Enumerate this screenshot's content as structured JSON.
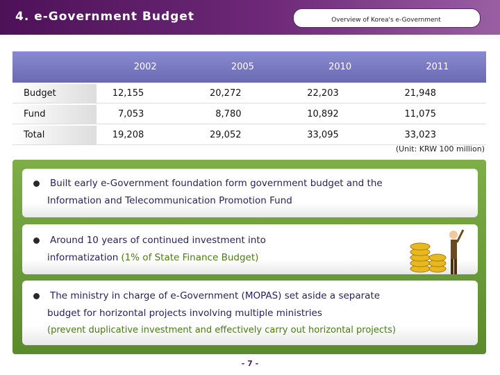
{
  "header": {
    "title": "4. e-Government Budget",
    "section": "Overview of Korea's e-Government"
  },
  "table": {
    "columns": [
      "2002",
      "2005",
      "2010",
      "2011"
    ],
    "rows": [
      [
        "Budget",
        "12,155",
        "20,272",
        "22,203",
        "21,948"
      ],
      [
        "Fund",
        "7,053",
        "8,780",
        "10,892",
        "11,075"
      ],
      [
        "Total",
        "19,208",
        "29,052",
        "33,095",
        "33,023"
      ]
    ],
    "unit": "(Unit: KRW 100 million)"
  },
  "bullets": [
    {
      "lines": [
        "Built early e-Government foundation form government budget and the",
        "Information and Telecommunication Promotion Fund"
      ]
    },
    {
      "lines": [
        "Around 10 years of continued investment into",
        "informatization"
      ],
      "note": "(1% of State Finance Budget)"
    },
    {
      "lines": [
        "The ministry in charge of e-Government (MOPAS) set aside a separate",
        "budget for horizontal projects involving multiple ministries"
      ],
      "note": "(prevent duplicative investment and effectively carry out horizontal projects)"
    }
  ],
  "footer": {
    "page": "- 7 -"
  }
}
